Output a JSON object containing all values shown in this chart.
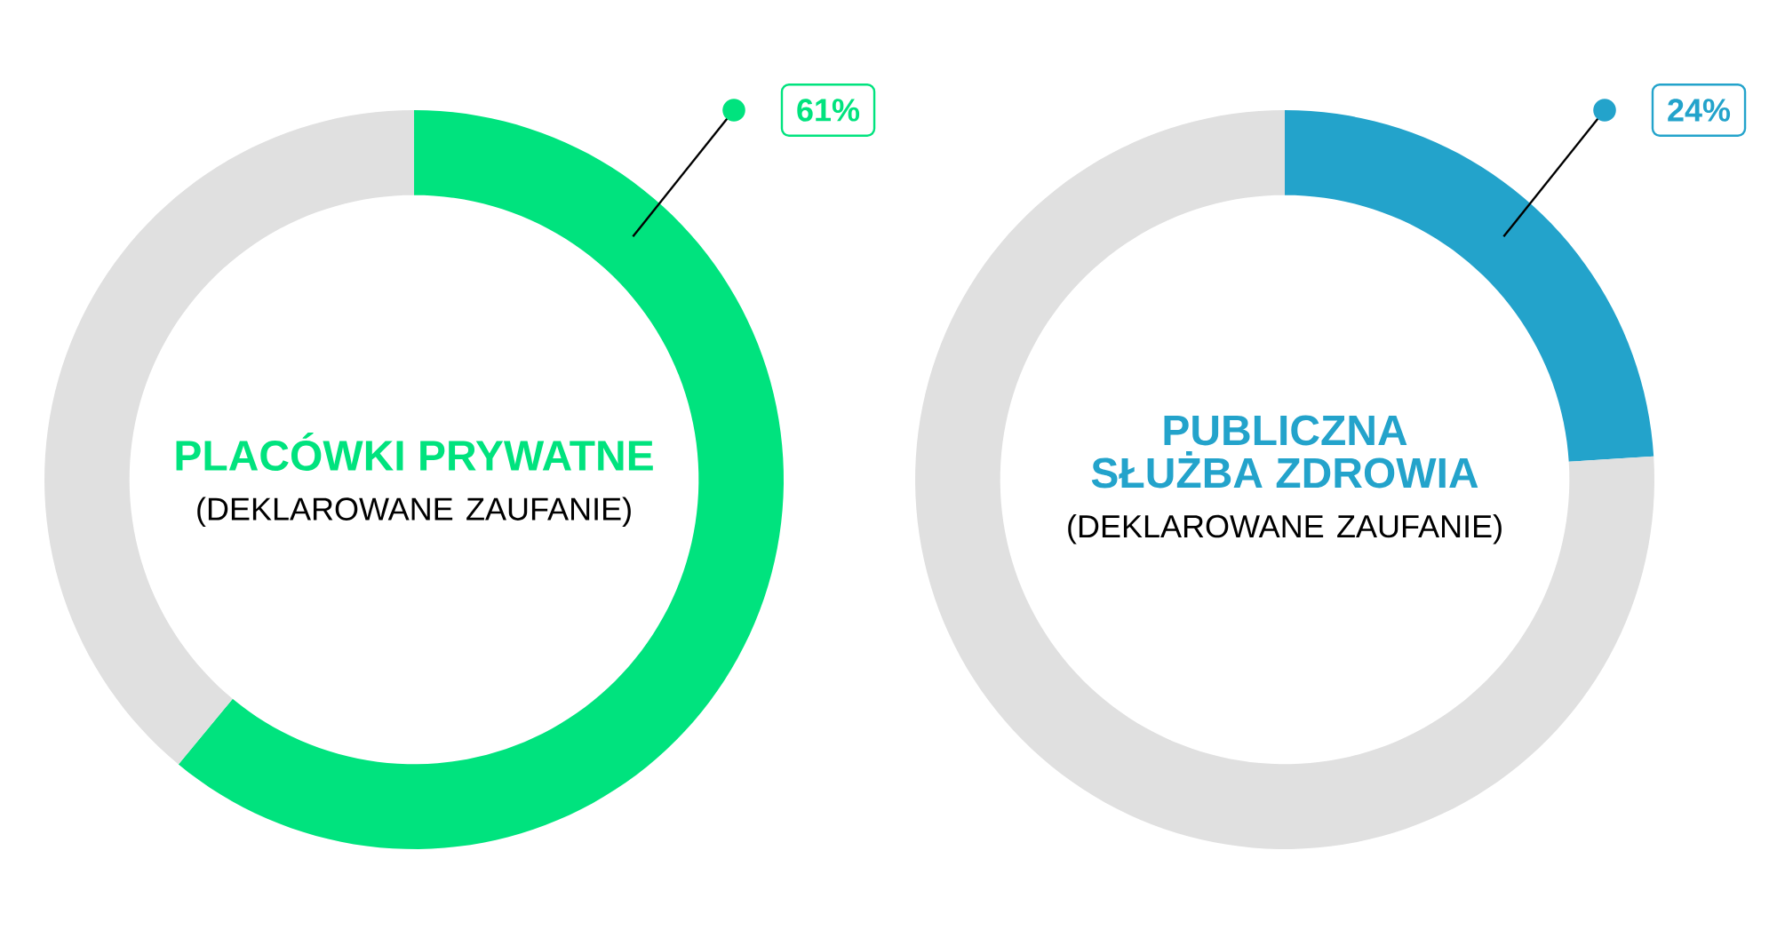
{
  "chart_data": [
    {
      "type": "donut",
      "title": "PLACÓWKI PRYWATNE",
      "subtitle": "(DEKLAROWANE ZAUFANIE)",
      "categories": [
        null,
        null
      ],
      "values": [
        61,
        39
      ],
      "colors": [
        "#00e37e",
        "#e0e0e0"
      ],
      "value_labels": [
        "61%",
        null
      ]
    },
    {
      "type": "donut",
      "title": "PUBLICZNA SŁUŻBA ZDROWIA",
      "subtitle": "(DEKLAROWANE ZAUFANIE)",
      "categories": [
        null,
        null
      ],
      "values": [
        24,
        76
      ],
      "colors": [
        "#23a3cb",
        "#e0e0e0"
      ],
      "value_labels": [
        "24%",
        null
      ]
    }
  ]
}
